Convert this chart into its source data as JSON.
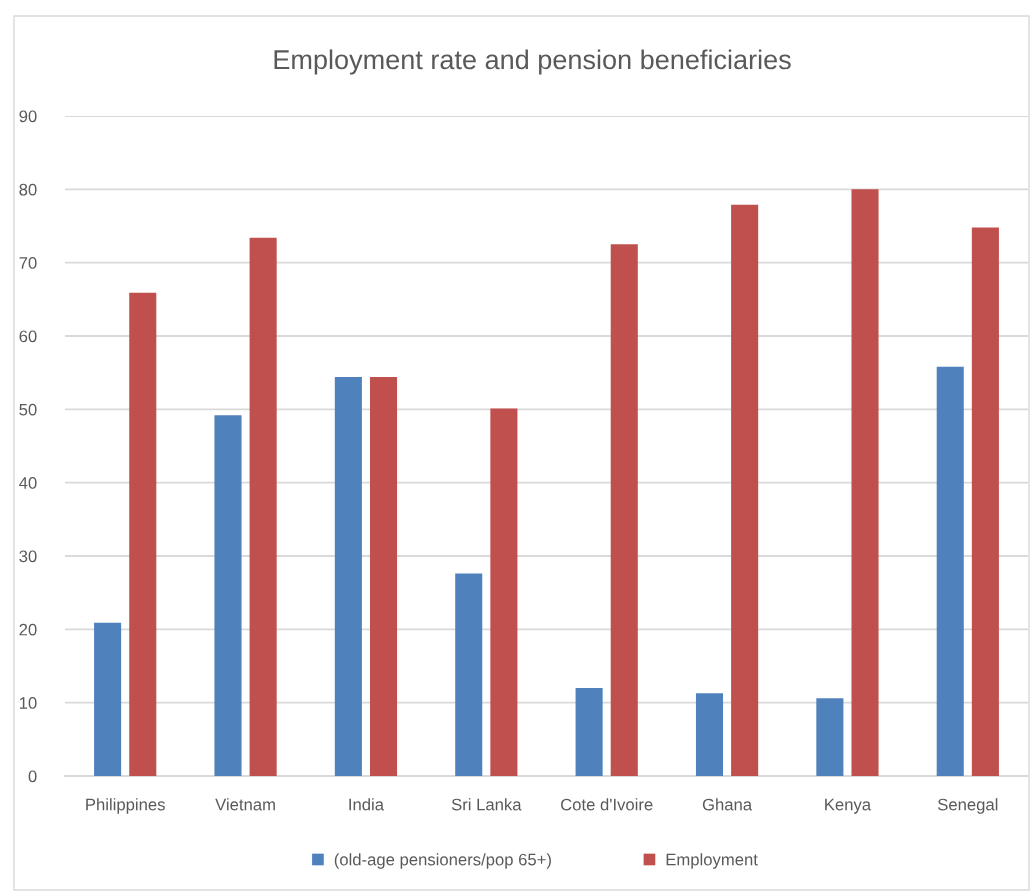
{
  "chart_data": {
    "type": "bar",
    "title": "Employment rate and pension beneficiaries",
    "categories": [
      "Philippines",
      "Vietnam",
      "India",
      "Sri Lanka",
      "Cote d'Ivoire",
      "Ghana",
      "Kenya",
      "Senegal"
    ],
    "series": [
      {
        "name": "(old-age pensioners/pop 65+)",
        "color": "#4f81bd",
        "values": [
          20.9,
          49.2,
          54.4,
          27.6,
          12.0,
          11.3,
          10.6,
          55.8
        ]
      },
      {
        "name": "Employment",
        "color": "#c0504d",
        "values": [
          65.9,
          73.4,
          54.4,
          50.1,
          72.5,
          77.9,
          80.0,
          74.8
        ]
      }
    ],
    "ylim": [
      0,
      90
    ],
    "yticks": [
      0,
      10,
      20,
      30,
      40,
      50,
      60,
      70,
      80,
      90
    ],
    "grid": "y",
    "legend": "bottom"
  }
}
